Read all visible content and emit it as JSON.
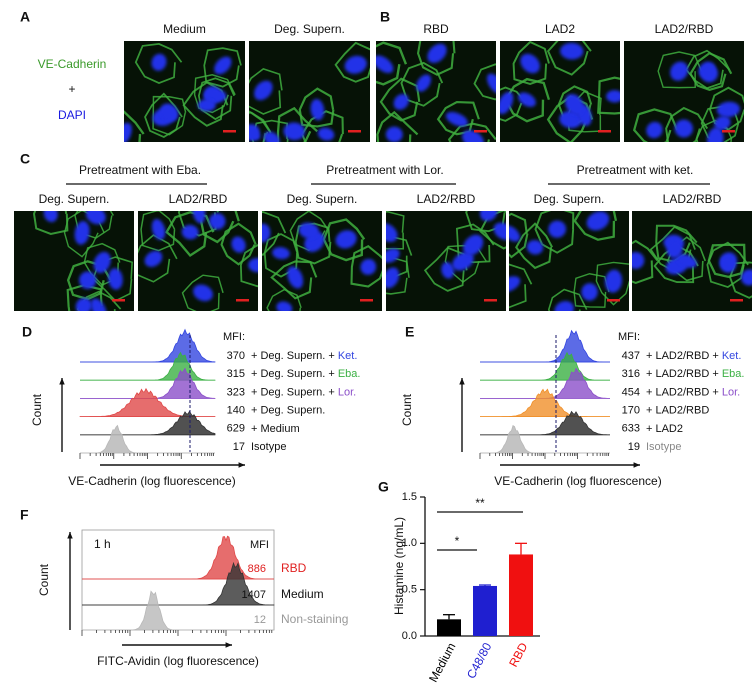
{
  "panels": {
    "a": {
      "label": "A",
      "stain": [
        "VE-Cadherin",
        "+",
        "DAPI"
      ],
      "images": [
        "Medium",
        "Deg. Supern."
      ]
    },
    "b": {
      "label": "B",
      "images": [
        "RBD",
        "LAD2",
        "LAD2/RBD"
      ]
    },
    "c": {
      "label": "C",
      "groups": [
        {
          "title": "Pretreatment with Eba.",
          "images": [
            "Deg. Supern.",
            "LAD2/RBD"
          ]
        },
        {
          "title": "Pretreatment with Lor.",
          "images": [
            "Deg. Supern.",
            "LAD2/RBD"
          ]
        },
        {
          "title": "Pretreatment with  ket.",
          "images": [
            "Deg. Supern.",
            "LAD2/RBD"
          ]
        }
      ]
    },
    "d": {
      "label": "D",
      "mfi_header": "MFI:",
      "y_label": "Count",
      "x_label": "VE-Cadherin (log fluorescence)",
      "rows": [
        {
          "mfi": 370,
          "label": "+ Deg. Supern. +",
          "agent": "Ket.",
          "color": "#3346e0"
        },
        {
          "mfi": 315,
          "label": "+ Deg. Supern. +",
          "agent": "Eba.",
          "color": "#3bb043"
        },
        {
          "mfi": 323,
          "label": "+ Deg. Supern. +",
          "agent": "Lor.",
          "color": "#8b4fc9"
        },
        {
          "mfi": 140,
          "label": "+ Deg. Supern.",
          "color": "#e04848"
        },
        {
          "mfi": 629,
          "label": "+ Medium",
          "color": "#333333"
        },
        {
          "mfi": 17,
          "label": "Isotype",
          "color": "#b8b8b8"
        }
      ]
    },
    "e": {
      "label": "E",
      "mfi_header": "MFI:",
      "y_label": "Count",
      "x_label": "VE-Cadherin (log fluorescence)",
      "rows": [
        {
          "mfi": 437,
          "label": "+ LAD2/RBD +",
          "agent": "Ket.",
          "color": "#3346e0"
        },
        {
          "mfi": 316,
          "label": "+ LAD2/RBD +",
          "agent": "Eba.",
          "color": "#3bb043"
        },
        {
          "mfi": 454,
          "label": "+ LAD2/RBD +",
          "agent": "Lor.",
          "color": "#8b4fc9"
        },
        {
          "mfi": 170,
          "label": "+ LAD2/RBD",
          "color": "#f0902a"
        },
        {
          "mfi": 633,
          "label": "+ LAD2",
          "color": "#333333"
        },
        {
          "mfi": 19,
          "label": "Isotype",
          "color": "#b8b8b8",
          "label_color": "#888888"
        }
      ]
    },
    "f": {
      "label": "F",
      "time": "1 h",
      "mfi_header": "MFI",
      "y_label": "Count",
      "x_label": "FITC-Avidin (log fluorescence)",
      "rows": [
        {
          "mfi": 886,
          "label": "RBD",
          "color": "#e04848",
          "label_color": "#e02020"
        },
        {
          "mfi": 1407,
          "label": "Medium",
          "color": "#333333",
          "label_color": "#111111"
        },
        {
          "mfi": 12,
          "label": "Non-staining",
          "color": "#b8b8b8",
          "label_color": "#999999"
        }
      ]
    }
  },
  "chart_data": {
    "type": "bar",
    "panel_label": "G",
    "y_label": "Histamine (ng/mL)",
    "categories": [
      "Medium",
      "C48/80",
      "RBD"
    ],
    "values": [
      0.18,
      0.54,
      0.88
    ],
    "errors": [
      0.05,
      0.01,
      0.12
    ],
    "colors": [
      "#000000",
      "#1f1fd0",
      "#f01010"
    ],
    "ylim": [
      0,
      1.5
    ],
    "yticks": [
      {
        "value": 0,
        "label": "0.0"
      },
      0.5,
      {
        "value": 1,
        "label": "1.0"
      },
      1.5
    ],
    "significance": [
      {
        "label": "*",
        "from": 0,
        "to": 1
      },
      {
        "label": "**",
        "from": 0,
        "to": 2
      }
    ]
  }
}
